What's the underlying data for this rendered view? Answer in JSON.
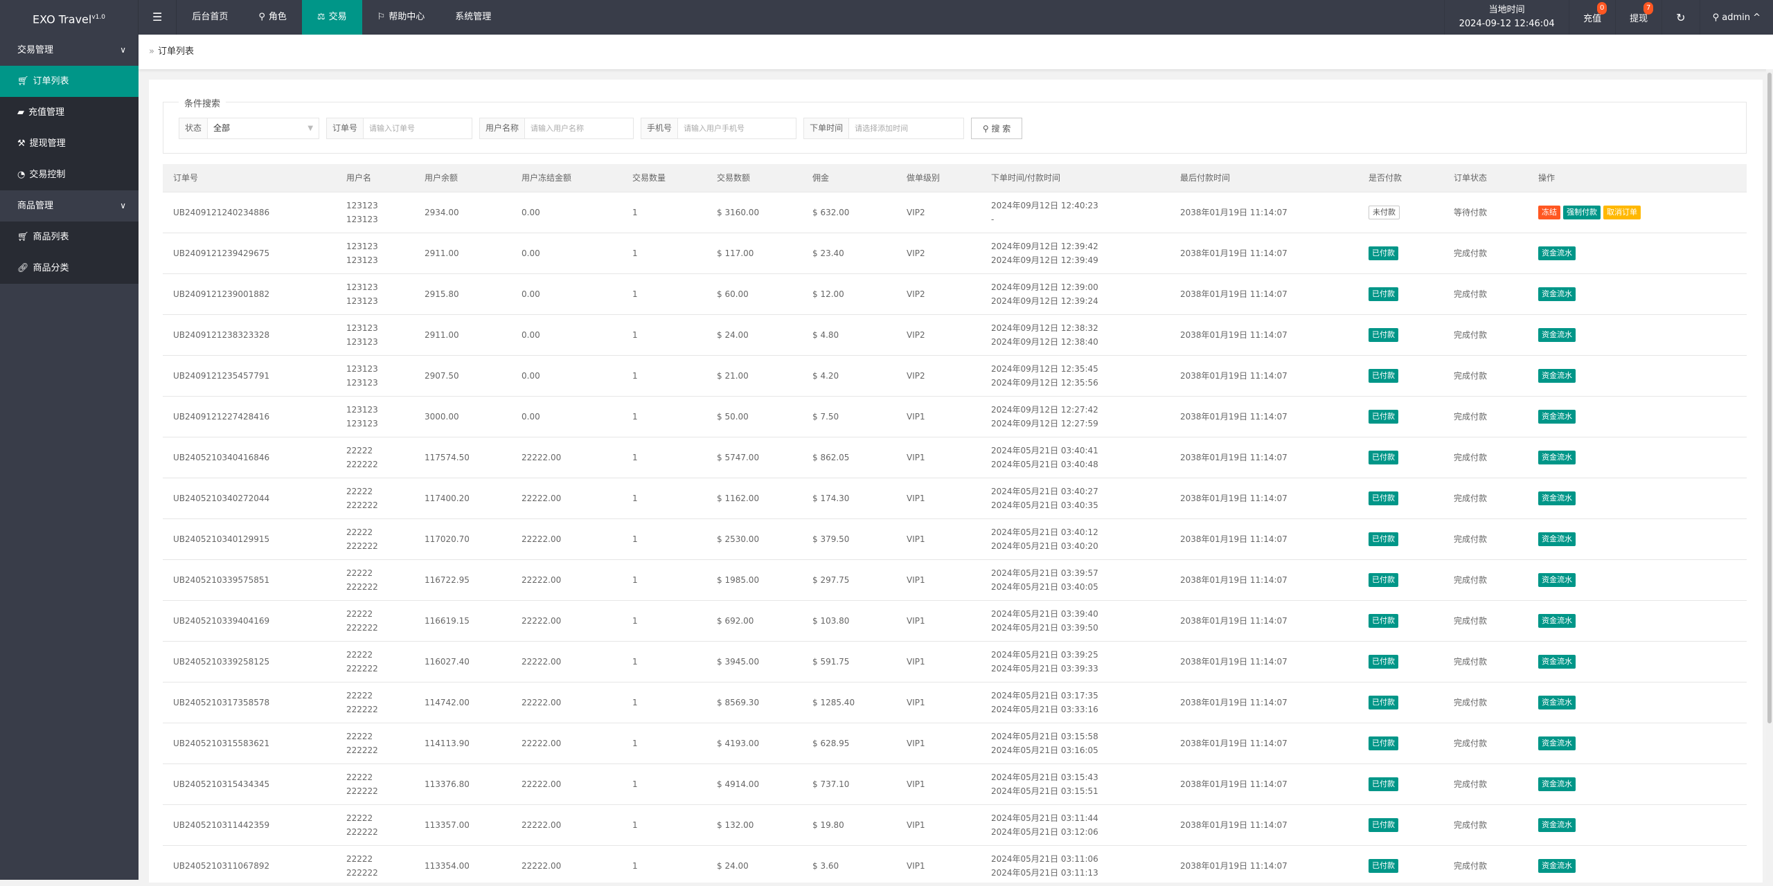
{
  "header": {
    "logo": "EXO Travel",
    "logo_version": "v1.0",
    "nav": [
      {
        "label": "后台首页",
        "icon": ""
      },
      {
        "label": "角色",
        "icon": "user-icon"
      },
      {
        "label": "交易",
        "icon": "scale-icon",
        "active": true
      },
      {
        "label": "帮助中心",
        "icon": "flag-icon"
      },
      {
        "label": "系统管理",
        "icon": ""
      }
    ],
    "clock_label": "当地时间",
    "clock_value": "2024-09-12 12:46:04",
    "recharge_label": "充值",
    "recharge_badge": "0",
    "withdraw_label": "提现",
    "withdraw_badge": "7",
    "user": "admin"
  },
  "sidebar": {
    "groups": [
      {
        "label": "交易管理",
        "items": [
          {
            "label": "订单列表",
            "icon": "cart-icon",
            "active": true
          },
          {
            "label": "充值管理",
            "icon": "chat-icon"
          },
          {
            "label": "提现管理",
            "icon": "hammer-icon"
          },
          {
            "label": "交易控制",
            "icon": "dashboard-icon"
          }
        ]
      },
      {
        "label": "商品管理",
        "items": [
          {
            "label": "商品列表",
            "icon": "cart-icon"
          },
          {
            "label": "商品分类",
            "icon": "link-icon"
          }
        ]
      }
    ]
  },
  "breadcrumb": "订单列表",
  "search": {
    "legend": "条件搜索",
    "status_label": "状态",
    "status_value": "全部",
    "order_label": "订单号",
    "order_placeholder": "请输入订单号",
    "username_label": "用户名称",
    "username_placeholder": "请输入用户名称",
    "phone_label": "手机号",
    "phone_placeholder": "请输入用户手机号",
    "time_label": "下单时间",
    "time_placeholder": "请选择添加时间",
    "button": "搜 索"
  },
  "colors": {
    "accent": "#009688",
    "danger": "#ff5722",
    "warning": "#ffb800",
    "header": "#393d49"
  },
  "table": {
    "columns": [
      "订单号",
      "用户名",
      "用户余额",
      "用户冻结金额",
      "交易数量",
      "交易数额",
      "佣金",
      "做单级别",
      "下单时间/付款时间",
      "最后付款时间",
      "是否付款",
      "订单状态",
      "操作"
    ],
    "rows": [
      {
        "id": "UB2409121240234886",
        "user1": "123123",
        "user2": "123123",
        "balance": "2934.00",
        "frozen": "0.00",
        "qty": "1",
        "amount": "$ 3160.00",
        "commission": "$ 632.00",
        "level": "VIP2",
        "t1": "2024年09月12日 12:40:23",
        "t2": "-",
        "last": "2038年01月19日 11:14:07",
        "paid": "未付款",
        "status": "等待付款",
        "actions": [
          "冻结",
          "强制付款",
          "取消订单"
        ]
      },
      {
        "id": "UB2409121239429675",
        "user1": "123123",
        "user2": "123123",
        "balance": "2911.00",
        "frozen": "0.00",
        "qty": "1",
        "amount": "$ 117.00",
        "commission": "$ 23.40",
        "level": "VIP2",
        "t1": "2024年09月12日 12:39:42",
        "t2": "2024年09月12日 12:39:49",
        "last": "2038年01月19日 11:14:07",
        "paid": "已付款",
        "status": "完成付款",
        "actions": [
          "资金流水"
        ]
      },
      {
        "id": "UB2409121239001882",
        "user1": "123123",
        "user2": "123123",
        "balance": "2915.80",
        "frozen": "0.00",
        "qty": "1",
        "amount": "$ 60.00",
        "commission": "$ 12.00",
        "level": "VIP2",
        "t1": "2024年09月12日 12:39:00",
        "t2": "2024年09月12日 12:39:24",
        "last": "2038年01月19日 11:14:07",
        "paid": "已付款",
        "status": "完成付款",
        "actions": [
          "资金流水"
        ]
      },
      {
        "id": "UB2409121238323328",
        "user1": "123123",
        "user2": "123123",
        "balance": "2911.00",
        "frozen": "0.00",
        "qty": "1",
        "amount": "$ 24.00",
        "commission": "$ 4.80",
        "level": "VIP2",
        "t1": "2024年09月12日 12:38:32",
        "t2": "2024年09月12日 12:38:40",
        "last": "2038年01月19日 11:14:07",
        "paid": "已付款",
        "status": "完成付款",
        "actions": [
          "资金流水"
        ]
      },
      {
        "id": "UB2409121235457791",
        "user1": "123123",
        "user2": "123123",
        "balance": "2907.50",
        "frozen": "0.00",
        "qty": "1",
        "amount": "$ 21.00",
        "commission": "$ 4.20",
        "level": "VIP2",
        "t1": "2024年09月12日 12:35:45",
        "t2": "2024年09月12日 12:35:56",
        "last": "2038年01月19日 11:14:07",
        "paid": "已付款",
        "status": "完成付款",
        "actions": [
          "资金流水"
        ]
      },
      {
        "id": "UB2409121227428416",
        "user1": "123123",
        "user2": "123123",
        "balance": "3000.00",
        "frozen": "0.00",
        "qty": "1",
        "amount": "$ 50.00",
        "commission": "$ 7.50",
        "level": "VIP1",
        "t1": "2024年09月12日 12:27:42",
        "t2": "2024年09月12日 12:27:59",
        "last": "2038年01月19日 11:14:07",
        "paid": "已付款",
        "status": "完成付款",
        "actions": [
          "资金流水"
        ]
      },
      {
        "id": "UB2405210340416846",
        "user1": "22222",
        "user2": "222222",
        "balance": "117574.50",
        "frozen": "22222.00",
        "qty": "1",
        "amount": "$ 5747.00",
        "commission": "$ 862.05",
        "level": "VIP1",
        "t1": "2024年05月21日 03:40:41",
        "t2": "2024年05月21日 03:40:48",
        "last": "2038年01月19日 11:14:07",
        "paid": "已付款",
        "status": "完成付款",
        "actions": [
          "资金流水"
        ]
      },
      {
        "id": "UB2405210340272044",
        "user1": "22222",
        "user2": "222222",
        "balance": "117400.20",
        "frozen": "22222.00",
        "qty": "1",
        "amount": "$ 1162.00",
        "commission": "$ 174.30",
        "level": "VIP1",
        "t1": "2024年05月21日 03:40:27",
        "t2": "2024年05月21日 03:40:35",
        "last": "2038年01月19日 11:14:07",
        "paid": "已付款",
        "status": "完成付款",
        "actions": [
          "资金流水"
        ]
      },
      {
        "id": "UB2405210340129915",
        "user1": "22222",
        "user2": "222222",
        "balance": "117020.70",
        "frozen": "22222.00",
        "qty": "1",
        "amount": "$ 2530.00",
        "commission": "$ 379.50",
        "level": "VIP1",
        "t1": "2024年05月21日 03:40:12",
        "t2": "2024年05月21日 03:40:20",
        "last": "2038年01月19日 11:14:07",
        "paid": "已付款",
        "status": "完成付款",
        "actions": [
          "资金流水"
        ]
      },
      {
        "id": "UB2405210339575851",
        "user1": "22222",
        "user2": "222222",
        "balance": "116722.95",
        "frozen": "22222.00",
        "qty": "1",
        "amount": "$ 1985.00",
        "commission": "$ 297.75",
        "level": "VIP1",
        "t1": "2024年05月21日 03:39:57",
        "t2": "2024年05月21日 03:40:05",
        "last": "2038年01月19日 11:14:07",
        "paid": "已付款",
        "status": "完成付款",
        "actions": [
          "资金流水"
        ]
      },
      {
        "id": "UB2405210339404169",
        "user1": "22222",
        "user2": "222222",
        "balance": "116619.15",
        "frozen": "22222.00",
        "qty": "1",
        "amount": "$ 692.00",
        "commission": "$ 103.80",
        "level": "VIP1",
        "t1": "2024年05月21日 03:39:40",
        "t2": "2024年05月21日 03:39:50",
        "last": "2038年01月19日 11:14:07",
        "paid": "已付款",
        "status": "完成付款",
        "actions": [
          "资金流水"
        ]
      },
      {
        "id": "UB2405210339258125",
        "user1": "22222",
        "user2": "222222",
        "balance": "116027.40",
        "frozen": "22222.00",
        "qty": "1",
        "amount": "$ 3945.00",
        "commission": "$ 591.75",
        "level": "VIP1",
        "t1": "2024年05月21日 03:39:25",
        "t2": "2024年05月21日 03:39:33",
        "last": "2038年01月19日 11:14:07",
        "paid": "已付款",
        "status": "完成付款",
        "actions": [
          "资金流水"
        ]
      },
      {
        "id": "UB2405210317358578",
        "user1": "22222",
        "user2": "222222",
        "balance": "114742.00",
        "frozen": "22222.00",
        "qty": "1",
        "amount": "$ 8569.30",
        "commission": "$ 1285.40",
        "level": "VIP1",
        "t1": "2024年05月21日 03:17:35",
        "t2": "2024年05月21日 03:33:16",
        "last": "2038年01月19日 11:14:07",
        "paid": "已付款",
        "status": "完成付款",
        "actions": [
          "资金流水"
        ]
      },
      {
        "id": "UB2405210315583621",
        "user1": "22222",
        "user2": "222222",
        "balance": "114113.90",
        "frozen": "22222.00",
        "qty": "1",
        "amount": "$ 4193.00",
        "commission": "$ 628.95",
        "level": "VIP1",
        "t1": "2024年05月21日 03:15:58",
        "t2": "2024年05月21日 03:16:05",
        "last": "2038年01月19日 11:14:07",
        "paid": "已付款",
        "status": "完成付款",
        "actions": [
          "资金流水"
        ]
      },
      {
        "id": "UB2405210315434345",
        "user1": "22222",
        "user2": "222222",
        "balance": "113376.80",
        "frozen": "22222.00",
        "qty": "1",
        "amount": "$ 4914.00",
        "commission": "$ 737.10",
        "level": "VIP1",
        "t1": "2024年05月21日 03:15:43",
        "t2": "2024年05月21日 03:15:51",
        "last": "2038年01月19日 11:14:07",
        "paid": "已付款",
        "status": "完成付款",
        "actions": [
          "资金流水"
        ]
      },
      {
        "id": "UB2405210311442359",
        "user1": "22222",
        "user2": "222222",
        "balance": "113357.00",
        "frozen": "22222.00",
        "qty": "1",
        "amount": "$ 132.00",
        "commission": "$ 19.80",
        "level": "VIP1",
        "t1": "2024年05月21日 03:11:44",
        "t2": "2024年05月21日 03:12:06",
        "last": "2038年01月19日 11:14:07",
        "paid": "已付款",
        "status": "完成付款",
        "actions": [
          "资金流水"
        ]
      },
      {
        "id": "UB2405210311067892",
        "user1": "22222",
        "user2": "222222",
        "balance": "113354.00",
        "frozen": "22222.00",
        "qty": "1",
        "amount": "$ 24.00",
        "commission": "$ 3.60",
        "level": "VIP1",
        "t1": "2024年05月21日 03:11:06",
        "t2": "2024年05月21日 03:11:13",
        "last": "2038年01月19日 11:14:07",
        "paid": "已付款",
        "status": "完成付款",
        "actions": [
          "资金流水"
        ]
      }
    ]
  }
}
